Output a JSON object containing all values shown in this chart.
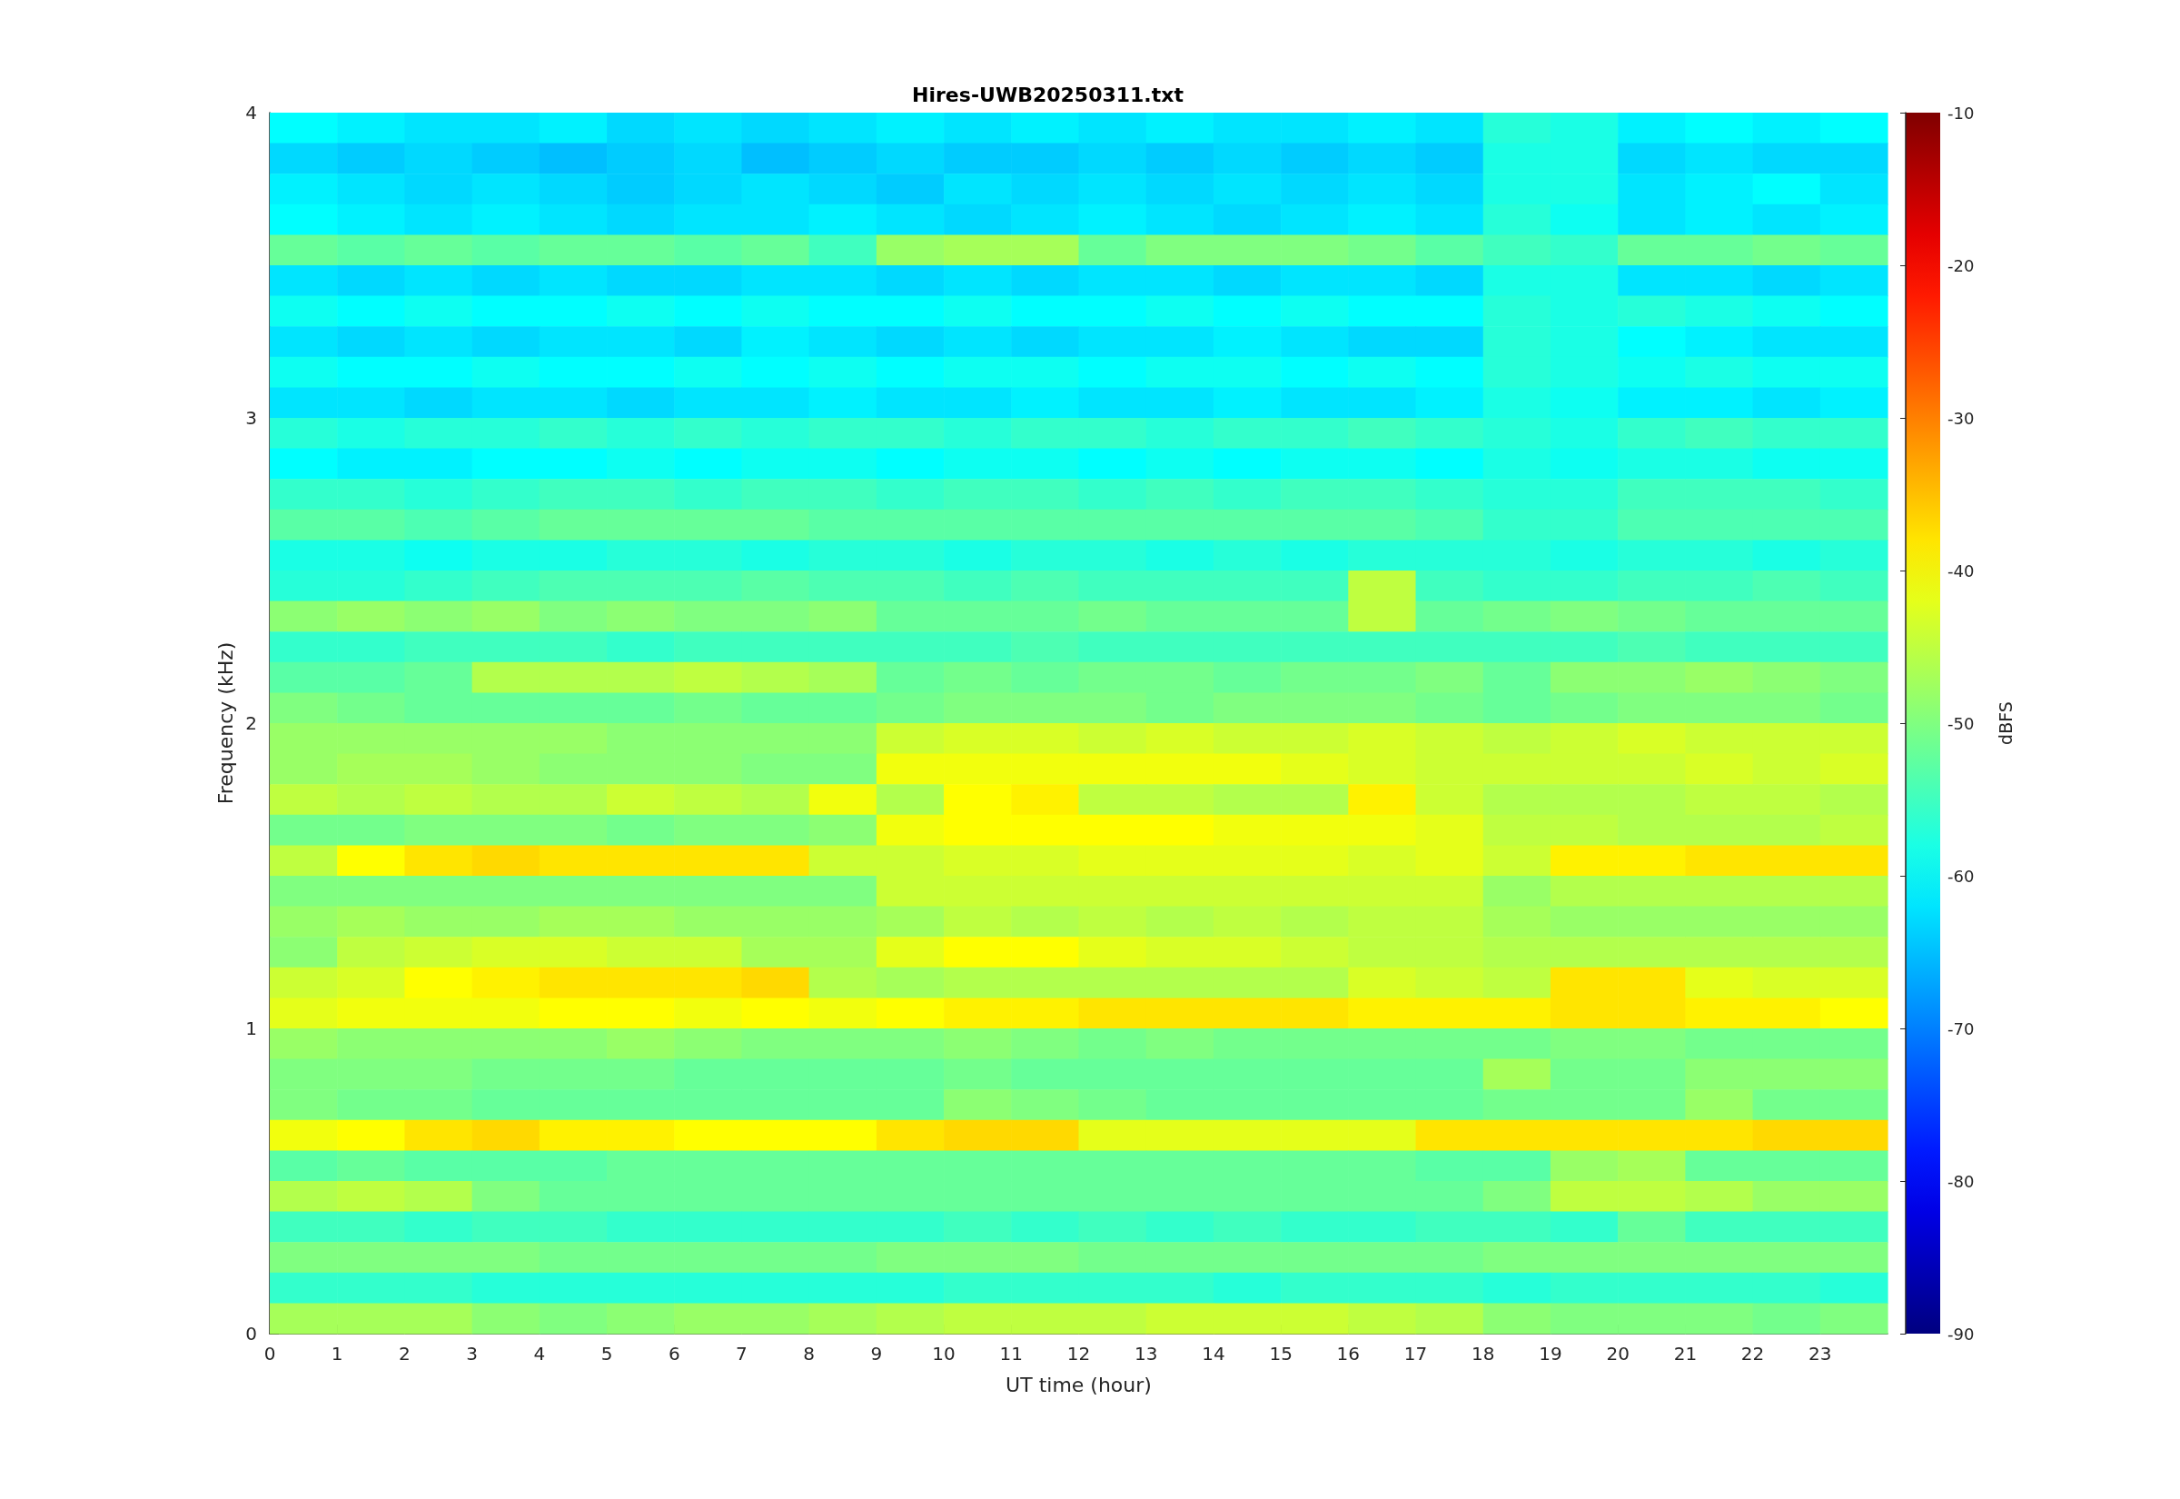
{
  "chart_data": {
    "type": "heatmap",
    "title": "Hires-UWB20250311.txt",
    "xlabel": "UT time (hour)",
    "ylabel": "Frequency (kHz)",
    "clabel": "dBFS",
    "xlim": [
      0,
      24
    ],
    "xticks": [
      0,
      1,
      2,
      3,
      4,
      5,
      6,
      7,
      8,
      9,
      10,
      11,
      12,
      13,
      14,
      15,
      16,
      17,
      18,
      19,
      20,
      21,
      22,
      23
    ],
    "ylim": [
      0,
      4
    ],
    "yticks": [
      0,
      1,
      2,
      3,
      4
    ],
    "clim": [
      -90,
      -10
    ],
    "cticks": [
      -90,
      -80,
      -70,
      -60,
      -50,
      -40,
      -30,
      -20,
      -10
    ],
    "cells": [
      [
        -60,
        -61,
        -62,
        -62,
        -61,
        -63,
        -62,
        -63,
        -62,
        -61,
        -62,
        -61,
        -62,
        -61,
        -62,
        -62,
        -61,
        -62,
        -57,
        -58,
        -61,
        -60,
        -61,
        -60
      ],
      [
        -63,
        -64,
        -63,
        -64,
        -65,
        -64,
        -63,
        -65,
        -64,
        -63,
        -64,
        -64,
        -63,
        -64,
        -63,
        -64,
        -63,
        -64,
        -58,
        -58,
        -63,
        -62,
        -63,
        -63
      ],
      [
        -61,
        -62,
        -63,
        -62,
        -63,
        -64,
        -63,
        -62,
        -63,
        -64,
        -62,
        -63,
        -62,
        -63,
        -62,
        -63,
        -62,
        -63,
        -58,
        -58,
        -62,
        -61,
        -60,
        -62
      ],
      [
        -60,
        -61,
        -62,
        -61,
        -62,
        -63,
        -62,
        -62,
        -61,
        -62,
        -63,
        -62,
        -61,
        -62,
        -63,
        -62,
        -61,
        -62,
        -57,
        -59,
        -62,
        -61,
        -62,
        -61
      ],
      [
        -52,
        -53,
        -52,
        -53,
        -52,
        -52,
        -53,
        -52,
        -55,
        -48,
        -47,
        -47,
        -52,
        -50,
        -50,
        -50,
        -51,
        -53,
        -55,
        -56,
        -52,
        -52,
        -51,
        -52
      ],
      [
        -62,
        -63,
        -62,
        -63,
        -62,
        -63,
        -63,
        -62,
        -62,
        -63,
        -62,
        -63,
        -62,
        -62,
        -63,
        -62,
        -62,
        -63,
        -58,
        -58,
        -62,
        -62,
        -63,
        -62
      ],
      [
        -59,
        -60,
        -59,
        -60,
        -60,
        -59,
        -60,
        -59,
        -60,
        -60,
        -59,
        -60,
        -60,
        -59,
        -60,
        -59,
        -60,
        -60,
        -57,
        -58,
        -57,
        -58,
        -59,
        -60
      ],
      [
        -62,
        -63,
        -62,
        -63,
        -62,
        -62,
        -63,
        -61,
        -62,
        -63,
        -62,
        -63,
        -62,
        -62,
        -61,
        -62,
        -63,
        -63,
        -57,
        -58,
        -60,
        -61,
        -62,
        -62
      ],
      [
        -59,
        -60,
        -60,
        -59,
        -60,
        -60,
        -59,
        -60,
        -59,
        -60,
        -59,
        -59,
        -60,
        -59,
        -59,
        -60,
        -59,
        -60,
        -57,
        -58,
        -59,
        -58,
        -59,
        -59
      ],
      [
        -62,
        -62,
        -63,
        -62,
        -62,
        -63,
        -62,
        -62,
        -61,
        -62,
        -62,
        -61,
        -62,
        -62,
        -61,
        -62,
        -62,
        -61,
        -58,
        -59,
        -61,
        -61,
        -62,
        -61
      ],
      [
        -57,
        -58,
        -57,
        -57,
        -56,
        -57,
        -56,
        -57,
        -56,
        -56,
        -57,
        -56,
        -56,
        -57,
        -56,
        -56,
        -55,
        -56,
        -57,
        -58,
        -56,
        -55,
        -56,
        -56
      ],
      [
        -60,
        -61,
        -61,
        -60,
        -60,
        -59,
        -60,
        -59,
        -59,
        -60,
        -59,
        -59,
        -60,
        -59,
        -60,
        -59,
        -59,
        -60,
        -58,
        -59,
        -58,
        -58,
        -59,
        -59
      ],
      [
        -56,
        -56,
        -57,
        -56,
        -55,
        -55,
        -56,
        -55,
        -55,
        -56,
        -55,
        -55,
        -56,
        -55,
        -56,
        -55,
        -55,
        -56,
        -57,
        -57,
        -55,
        -55,
        -55,
        -56
      ],
      [
        -53,
        -53,
        -54,
        -53,
        -52,
        -52,
        -52,
        -52,
        -53,
        -53,
        -53,
        -53,
        -53,
        -53,
        -53,
        -53,
        -53,
        -54,
        -56,
        -56,
        -54,
        -54,
        -54,
        -54
      ],
      [
        -58,
        -58,
        -59,
        -58,
        -58,
        -57,
        -57,
        -58,
        -57,
        -57,
        -58,
        -57,
        -57,
        -58,
        -57,
        -58,
        -57,
        -57,
        -57,
        -58,
        -57,
        -57,
        -58,
        -57
      ],
      [
        -57,
        -57,
        -56,
        -55,
        -54,
        -54,
        -54,
        -53,
        -54,
        -54,
        -55,
        -54,
        -55,
        -55,
        -55,
        -55,
        -45,
        -55,
        -56,
        -56,
        -55,
        -55,
        -54,
        -55
      ],
      [
        -49,
        -48,
        -49,
        -48,
        -50,
        -49,
        -50,
        -50,
        -49,
        -52,
        -52,
        -52,
        -51,
        -52,
        -52,
        -52,
        -45,
        -52,
        -51,
        -50,
        -51,
        -52,
        -52,
        -52
      ],
      [
        -56,
        -56,
        -55,
        -55,
        -55,
        -56,
        -55,
        -55,
        -55,
        -55,
        -55,
        -54,
        -55,
        -55,
        -55,
        -55,
        -55,
        -55,
        -55,
        -55,
        -54,
        -55,
        -55,
        -55
      ],
      [
        -53,
        -53,
        -52,
        -46,
        -46,
        -46,
        -45,
        -46,
        -47,
        -52,
        -51,
        -52,
        -51,
        -51,
        -52,
        -51,
        -51,
        -50,
        -52,
        -49,
        -49,
        -48,
        -49,
        -50
      ],
      [
        -50,
        -51,
        -52,
        -52,
        -52,
        -52,
        -51,
        -52,
        -52,
        -51,
        -50,
        -50,
        -50,
        -51,
        -50,
        -50,
        -50,
        -51,
        -52,
        -51,
        -50,
        -50,
        -50,
        -51
      ],
      [
        -48,
        -48,
        -48,
        -48,
        -48,
        -49,
        -49,
        -49,
        -49,
        -44,
        -43,
        -43,
        -44,
        -43,
        -44,
        -44,
        -43,
        -44,
        -45,
        -44,
        -43,
        -44,
        -44,
        -44
      ],
      [
        -48,
        -47,
        -47,
        -48,
        -49,
        -49,
        -49,
        -50,
        -50,
        -41,
        -41,
        -41,
        -41,
        -41,
        -41,
        -42,
        -43,
        -44,
        -44,
        -44,
        -44,
        -43,
        -44,
        -43
      ],
      [
        -45,
        -46,
        -45,
        -46,
        -46,
        -44,
        -45,
        -46,
        -41,
        -46,
        -40,
        -39,
        -45,
        -45,
        -46,
        -46,
        -39,
        -44,
        -46,
        -46,
        -46,
        -45,
        -45,
        -46
      ],
      [
        -51,
        -51,
        -50,
        -50,
        -50,
        -51,
        -50,
        -50,
        -49,
        -41,
        -40,
        -40,
        -40,
        -40,
        -41,
        -41,
        -41,
        -42,
        -45,
        -45,
        -46,
        -46,
        -46,
        -45
      ],
      [
        -45,
        -40,
        -38,
        -37,
        -38,
        -38,
        -38,
        -38,
        -44,
        -44,
        -43,
        -43,
        -42,
        -42,
        -42,
        -42,
        -43,
        -42,
        -44,
        -39,
        -39,
        -38,
        -38,
        -38
      ],
      [
        -50,
        -50,
        -50,
        -50,
        -50,
        -50,
        -50,
        -50,
        -50,
        -44,
        -44,
        -44,
        -44,
        -44,
        -44,
        -44,
        -44,
        -44,
        -48,
        -46,
        -46,
        -46,
        -46,
        -46
      ],
      [
        -48,
        -47,
        -48,
        -48,
        -47,
        -47,
        -48,
        -48,
        -48,
        -47,
        -45,
        -46,
        -45,
        -46,
        -45,
        -46,
        -45,
        -45,
        -47,
        -48,
        -48,
        -48,
        -48,
        -48
      ],
      [
        -49,
        -45,
        -44,
        -43,
        -43,
        -44,
        -44,
        -47,
        -47,
        -42,
        -40,
        -40,
        -42,
        -43,
        -43,
        -44,
        -45,
        -45,
        -46,
        -46,
        -46,
        -46,
        -46,
        -46
      ],
      [
        -44,
        -43,
        -40,
        -39,
        -38,
        -38,
        -38,
        -37,
        -46,
        -47,
        -46,
        -46,
        -46,
        -46,
        -46,
        -46,
        -43,
        -44,
        -45,
        -38,
        -38,
        -42,
        -43,
        -43
      ],
      [
        -42,
        -41,
        -41,
        -41,
        -40,
        -40,
        -41,
        -40,
        -41,
        -40,
        -39,
        -39,
        -38,
        -38,
        -38,
        -38,
        -39,
        -39,
        -39,
        -38,
        -38,
        -39,
        -39,
        -40
      ],
      [
        -48,
        -49,
        -49,
        -49,
        -49,
        -48,
        -49,
        -50,
        -50,
        -50,
        -49,
        -50,
        -51,
        -50,
        -51,
        -51,
        -51,
        -51,
        -51,
        -50,
        -50,
        -51,
        -51,
        -51
      ],
      [
        -50,
        -50,
        -50,
        -51,
        -51,
        -51,
        -52,
        -52,
        -52,
        -52,
        -51,
        -52,
        -52,
        -52,
        -52,
        -52,
        -52,
        -52,
        -47,
        -51,
        -51,
        -49,
        -49,
        -49
      ],
      [
        -50,
        -51,
        -51,
        -52,
        -52,
        -52,
        -52,
        -52,
        -52,
        -52,
        -49,
        -50,
        -51,
        -52,
        -52,
        -52,
        -52,
        -52,
        -51,
        -51,
        -51,
        -48,
        -51,
        -51
      ],
      [
        -41,
        -40,
        -38,
        -37,
        -39,
        -39,
        -40,
        -40,
        -40,
        -38,
        -37,
        -37,
        -42,
        -42,
        -42,
        -42,
        -42,
        -38,
        -38,
        -38,
        -38,
        -38,
        -37,
        -37
      ],
      [
        -53,
        -52,
        -53,
        -53,
        -53,
        -52,
        -52,
        -52,
        -52,
        -52,
        -52,
        -52,
        -52,
        -52,
        -52,
        -52,
        -52,
        -53,
        -53,
        -48,
        -47,
        -52,
        -52,
        -52
      ],
      [
        -46,
        -45,
        -46,
        -50,
        -52,
        -52,
        -52,
        -52,
        -52,
        -52,
        -52,
        -52,
        -52,
        -52,
        -52,
        -52,
        -52,
        -52,
        -50,
        -45,
        -45,
        -46,
        -48,
        -48
      ],
      [
        -55,
        -55,
        -56,
        -55,
        -55,
        -56,
        -56,
        -56,
        -56,
        -56,
        -55,
        -56,
        -55,
        -56,
        -55,
        -56,
        -56,
        -55,
        -55,
        -56,
        -52,
        -55,
        -55,
        -55
      ],
      [
        -50,
        -50,
        -50,
        -50,
        -51,
        -51,
        -51,
        -51,
        -51,
        -50,
        -50,
        -50,
        -51,
        -51,
        -51,
        -51,
        -51,
        -51,
        -50,
        -50,
        -50,
        -50,
        -50,
        -50
      ],
      [
        -56,
        -56,
        -56,
        -57,
        -57,
        -57,
        -57,
        -57,
        -57,
        -57,
        -56,
        -56,
        -56,
        -56,
        -57,
        -56,
        -56,
        -56,
        -57,
        -56,
        -56,
        -56,
        -56,
        -57
      ],
      [
        -47,
        -47,
        -47,
        -49,
        -50,
        -49,
        -48,
        -48,
        -47,
        -46,
        -45,
        -45,
        -45,
        -44,
        -44,
        -44,
        -45,
        -46,
        -49,
        -50,
        -50,
        -50,
        -51,
        -50
      ]
    ]
  }
}
